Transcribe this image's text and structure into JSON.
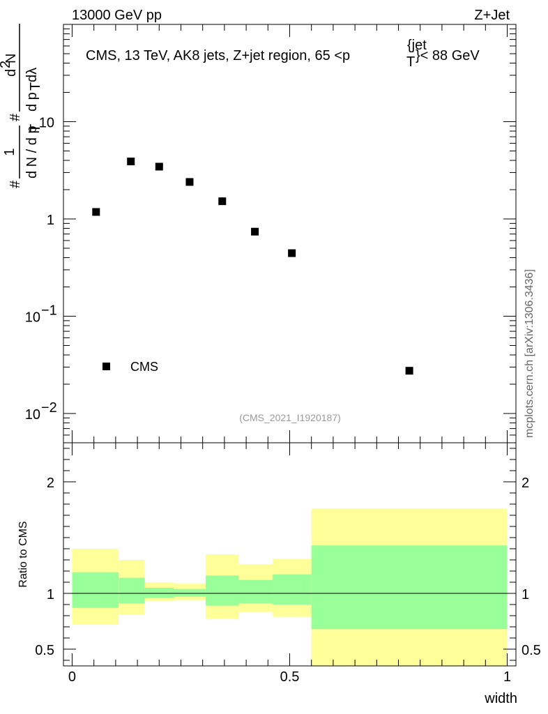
{
  "header": {
    "left": "13000 GeV pp",
    "right": "Z+Jet"
  },
  "side_label": "mcplots.cern.ch [arXiv:1306.3436]",
  "analysis_label": "(CMS_2021_I1920187)",
  "colors": {
    "band_outer": "#ffff99",
    "band_inner": "#99ff99",
    "marker": "#000000"
  },
  "chart_data": [
    {
      "type": "scatter",
      "title": "CMS, 13 TeV, AK8 jets, Z+jet region, 65 <p_T^{jet}< 88 GeV",
      "title_parts": {
        "main": "CMS, 13 TeV, AK8 jets, Z+jet region, 65 <p",
        "sup": "{jet",
        "sub": "T",
        "end": "}< 88 GeV"
      },
      "ylabel": "1 / dN/dp_T  d^2N / dp_T dλ",
      "ylabel_parts": {
        "one": "1",
        "den": "d N / d p",
        "num": "d",
        "num2": "N",
        "num_sup": "2",
        "den2": "d p",
        "den2_tail": "dλ",
        "sub_t": "T",
        "hash": "#"
      },
      "yscale": "log",
      "ylim": [
        0.005,
        100
      ],
      "xlim": [
        -0.02,
        1.02
      ],
      "yticks": [
        {
          "value": 0.01,
          "base": "10",
          "exp": "−2"
        },
        {
          "value": 0.1,
          "base": "10",
          "exp": "−1"
        },
        {
          "value": 1,
          "base": "1",
          "exp": ""
        },
        {
          "value": 10,
          "base": "10",
          "exp": ""
        }
      ],
      "series": [
        {
          "name": "CMS",
          "marker": "square",
          "points": [
            {
              "x": 0.055,
              "y": 1.18
            },
            {
              "x": 0.135,
              "y": 3.9
            },
            {
              "x": 0.2,
              "y": 3.45
            },
            {
              "x": 0.27,
              "y": 2.4
            },
            {
              "x": 0.345,
              "y": 1.52
            },
            {
              "x": 0.42,
              "y": 0.74
            },
            {
              "x": 0.505,
              "y": 0.445
            },
            {
              "x": 0.775,
              "y": 0.0275
            }
          ]
        }
      ],
      "legend": [
        {
          "label": "CMS",
          "marker": "square"
        }
      ],
      "legend_position": "bottom-left"
    },
    {
      "type": "area",
      "ylabel": "Ratio to CMS",
      "xlabel": "width",
      "ylim": [
        0.35,
        2.35
      ],
      "xlim": [
        -0.02,
        1.02
      ],
      "xticks": [
        {
          "value": 0,
          "label": "0"
        },
        {
          "value": 0.5,
          "label": "0.5"
        },
        {
          "value": 1,
          "label": "1"
        }
      ],
      "yticks": [
        {
          "value": 0.5,
          "label": "0.5"
        },
        {
          "value": 1,
          "label": "1"
        },
        {
          "value": 2,
          "label": "2"
        }
      ],
      "reference_line": 1,
      "bins": [
        {
          "x0": 0.0,
          "x1": 0.107,
          "outer_lo": 0.72,
          "outer_hi": 1.4,
          "inner_lo": 0.87,
          "inner_hi": 1.19
        },
        {
          "x0": 0.107,
          "x1": 0.167,
          "outer_lo": 0.81,
          "outer_hi": 1.3,
          "inner_lo": 0.91,
          "inner_hi": 1.14
        },
        {
          "x0": 0.167,
          "x1": 0.234,
          "outer_lo": 0.93,
          "outer_hi": 1.1,
          "inner_lo": 0.96,
          "inner_hi": 1.05
        },
        {
          "x0": 0.234,
          "x1": 0.307,
          "outer_lo": 0.94,
          "outer_hi": 1.09,
          "inner_lo": 0.97,
          "inner_hi": 1.04
        },
        {
          "x0": 0.307,
          "x1": 0.383,
          "outer_lo": 0.77,
          "outer_hi": 1.35,
          "inner_lo": 0.89,
          "inner_hi": 1.16
        },
        {
          "x0": 0.383,
          "x1": 0.461,
          "outer_lo": 0.83,
          "outer_hi": 1.26,
          "inner_lo": 0.91,
          "inner_hi": 1.12
        },
        {
          "x0": 0.461,
          "x1": 0.55,
          "outer_lo": 0.79,
          "outer_hi": 1.31,
          "inner_lo": 0.9,
          "inner_hi": 1.17
        },
        {
          "x0": 0.55,
          "x1": 1.0,
          "outer_lo": 0.35,
          "outer_hi": 1.76,
          "inner_lo": 0.68,
          "inner_hi": 1.43
        }
      ]
    }
  ]
}
